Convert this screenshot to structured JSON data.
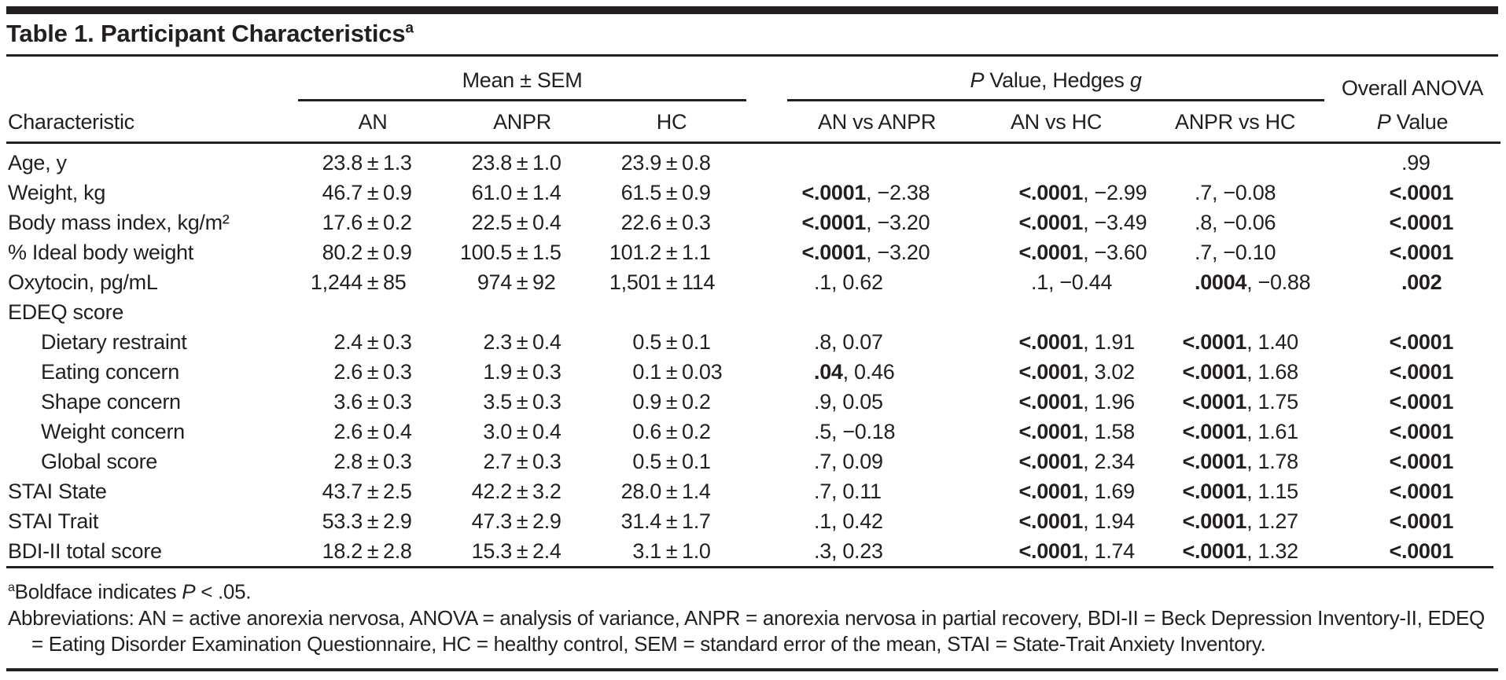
{
  "title": {
    "text": "Table 1. Participant Characteristics",
    "superscript": "a"
  },
  "header": {
    "characteristic": "Characteristic",
    "mean_group": "Mean ± SEM",
    "mean_cols": [
      "AN",
      "ANPR",
      "HC"
    ],
    "p_group_parts": [
      {
        "t": "P",
        "i": true
      },
      {
        "t": " Value, Hedges ",
        "i": false
      },
      {
        "t": "g",
        "i": true
      }
    ],
    "cmp_cols": [
      "AN vs ANPR",
      "AN vs HC",
      "ANPR vs HC"
    ],
    "anova_line1": "Overall ANOVA",
    "anova_line2_parts": [
      {
        "t": "P",
        "i": true
      },
      {
        "t": " Value",
        "i": false
      }
    ]
  },
  "rows": [
    {
      "label": "Age, y",
      "indent": 0,
      "an": [
        "23.8",
        "1.3"
      ],
      "anpr": [
        "23.8",
        "1.0"
      ],
      "hc": [
        "23.9",
        "0.8"
      ],
      "cmp": [
        null,
        null,
        null
      ],
      "anova": {
        "p": ".99",
        "bold": false
      }
    },
    {
      "label": "Weight, kg",
      "indent": 0,
      "an": [
        "46.7",
        "0.9"
      ],
      "anpr": [
        "61.0",
        "1.4"
      ],
      "hc": [
        "61.5",
        "0.9"
      ],
      "cmp": [
        {
          "p": "<.0001",
          "g": "−2.38",
          "bold": true
        },
        {
          "p": "<.0001",
          "g": "−2.99",
          "bold": true
        },
        {
          "p": ".7",
          "g": "−0.08",
          "bold": false
        }
      ],
      "anova": {
        "p": "<.0001",
        "bold": true
      }
    },
    {
      "label": "Body mass index, kg/m²",
      "indent": 0,
      "an": [
        "17.6",
        "0.2"
      ],
      "anpr": [
        "22.5",
        "0.4"
      ],
      "hc": [
        "22.6",
        "0.3"
      ],
      "cmp": [
        {
          "p": "<.0001",
          "g": "−3.20",
          "bold": true
        },
        {
          "p": "<.0001",
          "g": "−3.49",
          "bold": true
        },
        {
          "p": ".8",
          "g": "−0.06",
          "bold": false
        }
      ],
      "anova": {
        "p": "<.0001",
        "bold": true
      }
    },
    {
      "label": "% Ideal body weight",
      "indent": 0,
      "an": [
        "80.2",
        "0.9"
      ],
      "anpr": [
        "100.5",
        "1.5"
      ],
      "hc": [
        "101.2",
        "1.1"
      ],
      "cmp": [
        {
          "p": "<.0001",
          "g": "−3.20",
          "bold": true
        },
        {
          "p": "<.0001",
          "g": "−3.60",
          "bold": true
        },
        {
          "p": ".7",
          "g": "−0.10",
          "bold": false
        }
      ],
      "anova": {
        "p": "<.0001",
        "bold": true
      }
    },
    {
      "label": "Oxytocin, pg/mL",
      "indent": 0,
      "an": [
        "1,244",
        "85"
      ],
      "anpr": [
        "974",
        "92"
      ],
      "hc": [
        "1,501",
        "114"
      ],
      "cmp": [
        {
          "p": ".1",
          "g": "0.62",
          "bold": false
        },
        {
          "p": ".1",
          "g": "−0.44",
          "bold": false
        },
        {
          "p": ".0004",
          "g": "−0.88",
          "bold": true
        }
      ],
      "anova": {
        "p": ".002",
        "bold": true
      }
    },
    {
      "label": "EDEQ score",
      "indent": 0,
      "an": null,
      "anpr": null,
      "hc": null,
      "cmp": [
        null,
        null,
        null
      ],
      "anova": null
    },
    {
      "label": "Dietary restraint",
      "indent": 1,
      "an": [
        "2.4",
        "0.3"
      ],
      "anpr": [
        "2.3",
        "0.4"
      ],
      "hc": [
        "0.5",
        "0.1"
      ],
      "cmp": [
        {
          "p": ".8",
          "g": "0.07",
          "bold": false
        },
        {
          "p": "<.0001",
          "g": "1.91",
          "bold": true
        },
        {
          "p": "<.0001",
          "g": "1.40",
          "bold": true
        }
      ],
      "anova": {
        "p": "<.0001",
        "bold": true
      }
    },
    {
      "label": "Eating concern",
      "indent": 1,
      "an": [
        "2.6",
        "0.3"
      ],
      "anpr": [
        "1.9",
        "0.3"
      ],
      "hc": [
        "0.1",
        "0.03"
      ],
      "cmp": [
        {
          "p": ".04",
          "g": "0.46",
          "bold": true
        },
        {
          "p": "<.0001",
          "g": "3.02",
          "bold": true
        },
        {
          "p": "<.0001",
          "g": "1.68",
          "bold": true
        }
      ],
      "anova": {
        "p": "<.0001",
        "bold": true
      }
    },
    {
      "label": "Shape concern",
      "indent": 1,
      "an": [
        "3.6",
        "0.3"
      ],
      "anpr": [
        "3.5",
        "0.3"
      ],
      "hc": [
        "0.9",
        "0.2"
      ],
      "cmp": [
        {
          "p": ".9",
          "g": "0.05",
          "bold": false
        },
        {
          "p": "<.0001",
          "g": "1.96",
          "bold": true
        },
        {
          "p": "<.0001",
          "g": "1.75",
          "bold": true
        }
      ],
      "anova": {
        "p": "<.0001",
        "bold": true
      }
    },
    {
      "label": "Weight concern",
      "indent": 1,
      "an": [
        "2.6",
        "0.4"
      ],
      "anpr": [
        "3.0",
        "0.4"
      ],
      "hc": [
        "0.6",
        "0.2"
      ],
      "cmp": [
        {
          "p": ".5",
          "g": "−0.18",
          "bold": false
        },
        {
          "p": "<.0001",
          "g": "1.58",
          "bold": true
        },
        {
          "p": "<.0001",
          "g": "1.61",
          "bold": true
        }
      ],
      "anova": {
        "p": "<.0001",
        "bold": true
      }
    },
    {
      "label": "Global score",
      "indent": 1,
      "an": [
        "2.8",
        "0.3"
      ],
      "anpr": [
        "2.7",
        "0.3"
      ],
      "hc": [
        "0.5",
        "0.1"
      ],
      "cmp": [
        {
          "p": ".7",
          "g": "0.09",
          "bold": false
        },
        {
          "p": "<.0001",
          "g": "2.34",
          "bold": true
        },
        {
          "p": "<.0001",
          "g": "1.78",
          "bold": true
        }
      ],
      "anova": {
        "p": "<.0001",
        "bold": true
      }
    },
    {
      "label": "STAI State",
      "indent": 0,
      "an": [
        "43.7",
        "2.5"
      ],
      "anpr": [
        "42.2",
        "3.2"
      ],
      "hc": [
        "28.0",
        "1.4"
      ],
      "cmp": [
        {
          "p": ".7",
          "g": "0.11",
          "bold": false
        },
        {
          "p": "<.0001",
          "g": "1.69",
          "bold": true
        },
        {
          "p": "<.0001",
          "g": "1.15",
          "bold": true
        }
      ],
      "anova": {
        "p": "<.0001",
        "bold": true
      }
    },
    {
      "label": "STAI Trait",
      "indent": 0,
      "an": [
        "53.3",
        "2.9"
      ],
      "anpr": [
        "47.3",
        "2.9"
      ],
      "hc": [
        "31.4",
        "1.7"
      ],
      "cmp": [
        {
          "p": ".1",
          "g": "0.42",
          "bold": false
        },
        {
          "p": "<.0001",
          "g": "1.94",
          "bold": true
        },
        {
          "p": "<.0001",
          "g": "1.27",
          "bold": true
        }
      ],
      "anova": {
        "p": "<.0001",
        "bold": true
      }
    },
    {
      "label": "BDI-II total score",
      "indent": 0,
      "an": [
        "18.2",
        "2.8"
      ],
      "anpr": [
        "15.3",
        "2.4"
      ],
      "hc": [
        "3.1",
        "1.0"
      ],
      "cmp": [
        {
          "p": ".3",
          "g": "0.23",
          "bold": false
        },
        {
          "p": "<.0001",
          "g": "1.74",
          "bold": true
        },
        {
          "p": "<.0001",
          "g": "1.32",
          "bold": true
        }
      ],
      "anova": {
        "p": "<.0001",
        "bold": true
      }
    }
  ],
  "footnotes": {
    "note_a_parts": [
      {
        "t": "a",
        "sup": true
      },
      {
        "t": "Boldface indicates ",
        "i": false
      },
      {
        "t": "P",
        "i": true
      },
      {
        "t": " < .05.",
        "i": false
      }
    ],
    "abbreviations": "Abbreviations: AN = active anorexia nervosa, ANOVA = analysis of variance, ANPR = anorexia nervosa in partial recovery, BDI-II = Beck Depression Inventory-II, EDEQ = Eating Disorder Examination Questionnaire, HC = healthy control, SEM = standard error of the mean, STAI = State-Trait Anxiety Inventory."
  },
  "colors": {
    "ink": "#231f20",
    "background": "#ffffff"
  }
}
